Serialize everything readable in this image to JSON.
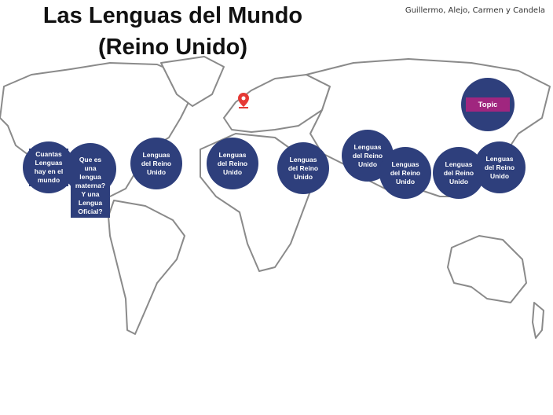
{
  "header": {
    "title_line1": "Las Lenguas del Mundo",
    "title_line2": "(Reino Unido)",
    "authors": "Guillermo, Alejo, Carmen y Candela"
  },
  "nodes": [
    {
      "label": "Cuantas Lenguas hay en el mundo"
    },
    {
      "label": "Que es una lengua materna? Y una Lengua Oficial?"
    },
    {
      "label": "Lenguas del Reino Unido"
    },
    {
      "label": "Lenguas del Reino Unido"
    },
    {
      "label": "Lenguas del Reino Unido"
    },
    {
      "label": "Lenguas del Reino Unido"
    },
    {
      "label": "Lenguas del Reino Unido"
    },
    {
      "label": "Lenguas del Reino Unido"
    },
    {
      "label": "Lenguas del Reino Unido"
    }
  ],
  "topic": {
    "label": "Topic"
  }
}
